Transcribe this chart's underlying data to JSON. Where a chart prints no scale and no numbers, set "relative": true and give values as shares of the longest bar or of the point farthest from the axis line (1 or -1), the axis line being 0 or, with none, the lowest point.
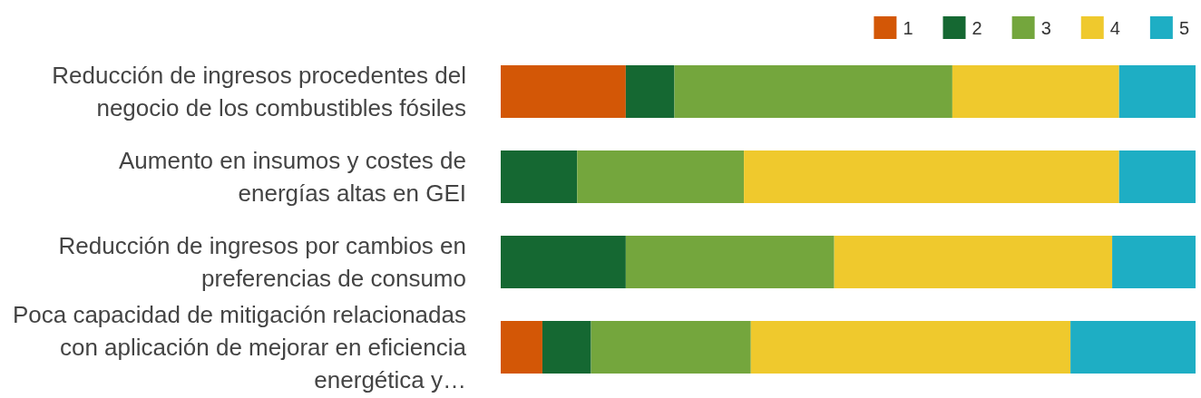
{
  "chart_data": {
    "type": "bar",
    "orientation": "horizontal",
    "stacked": true,
    "relative": true,
    "legend": "top right",
    "categories": [
      "Reducción de ingresos procedentes del\nnegocio de los combustibles fósiles",
      "Aumento en insumos y costes de\nenergías altas en GEI",
      "Reducción de ingresos por cambios en\npreferencias de consumo",
      "Poca capacidad de mitigación relacionadas\ncon aplicación de mejorar en eficiencia\nenergética y…"
    ],
    "series": [
      {
        "name": "1",
        "color": "#d35706",
        "values": [
          0.18,
          0,
          0,
          0.06
        ]
      },
      {
        "name": "2",
        "color": "#156832",
        "values": [
          0.07,
          0.11,
          0.18,
          0.07
        ]
      },
      {
        "name": "3",
        "color": "#74a63d",
        "values": [
          0.4,
          0.24,
          0.3,
          0.23
        ]
      },
      {
        "name": "4",
        "color": "#efc92d",
        "values": [
          0.24,
          0.54,
          0.4,
          0.46
        ]
      },
      {
        "name": "5",
        "color": "#1eaec4",
        "values": [
          0.11,
          0.11,
          0.12,
          0.18
        ]
      }
    ]
  }
}
